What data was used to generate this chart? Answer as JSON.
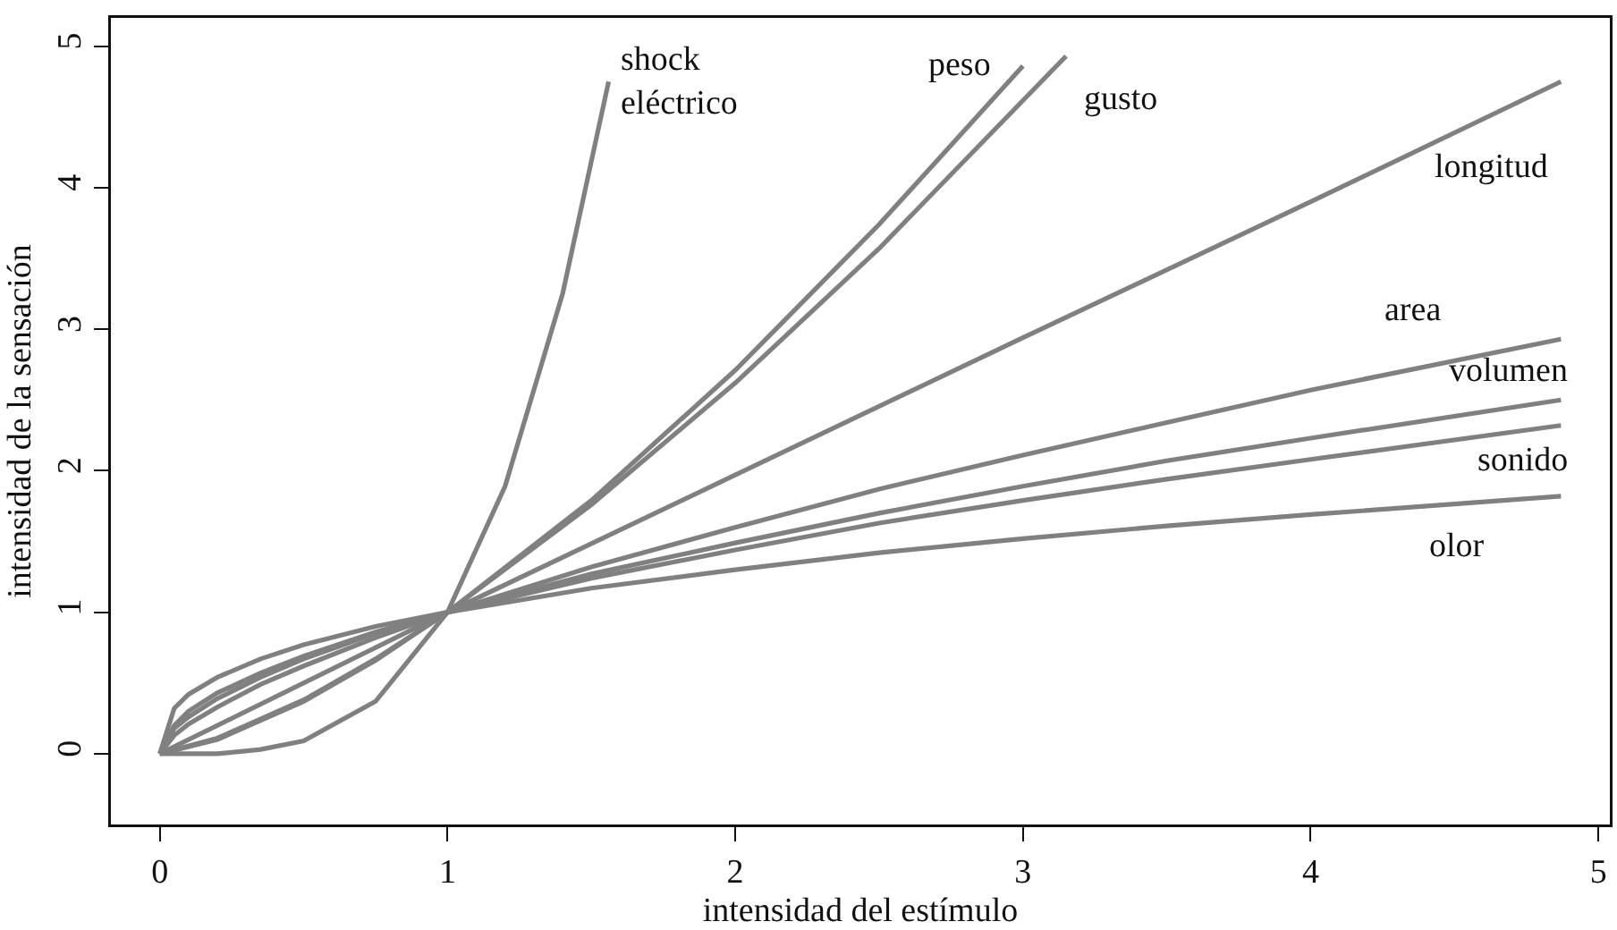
{
  "chart_data": {
    "type": "line",
    "xlabel": "intensidad del estímulo",
    "ylabel": "intensidad de la sensación",
    "xlim": [
      -0.17,
      5.04
    ],
    "ylim": [
      -0.5,
      5.2
    ],
    "xticks": [
      0,
      1,
      2,
      3,
      4,
      5
    ],
    "yticks": [
      0,
      1,
      2,
      3,
      4,
      5
    ],
    "grid": false,
    "legend": false,
    "marker": "none",
    "line_style": "solid",
    "series": [
      {
        "name": "shock\neléctrico",
        "color": "#808080",
        "x": [
          0,
          0.2,
          0.35,
          0.5,
          0.75,
          1,
          1.2,
          1.4,
          1.56
        ],
        "values": [
          0,
          0,
          0.03,
          0.09,
          0.37,
          1,
          1.89,
          3.25,
          4.75
        ]
      },
      {
        "name": "peso",
        "color": "#808080",
        "x": [
          0,
          0.2,
          0.5,
          0.75,
          1,
          1.5,
          2,
          2.5,
          3
        ],
        "values": [
          0,
          0.1,
          0.37,
          0.66,
          1,
          1.79,
          2.71,
          3.74,
          4.86
        ]
      },
      {
        "name": "gusto",
        "color": "#808080",
        "x": [
          0,
          0.2,
          0.5,
          0.75,
          1,
          1.5,
          2,
          2.5,
          3.15
        ],
        "values": [
          0,
          0.11,
          0.38,
          0.67,
          1,
          1.76,
          2.62,
          3.57,
          4.93
        ]
      },
      {
        "name": "longitud",
        "color": "#808080",
        "x": [
          0,
          1,
          2,
          3,
          4,
          4.87
        ],
        "values": [
          0,
          1,
          1.97,
          2.94,
          3.9,
          4.75
        ]
      },
      {
        "name": "area",
        "color": "#808080",
        "x": [
          0,
          0.05,
          0.1,
          0.2,
          0.35,
          0.5,
          0.75,
          1,
          1.5,
          2,
          2.5,
          3,
          3.5,
          4,
          4.87
        ],
        "values": [
          0,
          0.13,
          0.21,
          0.33,
          0.49,
          0.62,
          0.82,
          1,
          1.32,
          1.6,
          1.87,
          2.11,
          2.34,
          2.57,
          2.93
        ]
      },
      {
        "name": "volumen",
        "color": "#808080",
        "x": [
          0,
          0.05,
          0.1,
          0.2,
          0.35,
          0.5,
          0.75,
          1,
          1.5,
          2,
          2.5,
          3,
          3.5,
          4,
          4.87
        ],
        "values": [
          0,
          0.18,
          0.26,
          0.39,
          0.54,
          0.67,
          0.85,
          1,
          1.27,
          1.49,
          1.7,
          1.89,
          2.07,
          2.23,
          2.5
        ]
      },
      {
        "name": "sonido",
        "color": "#808080",
        "x": [
          0,
          0.05,
          0.1,
          0.2,
          0.35,
          0.5,
          0.75,
          1,
          1.5,
          2,
          2.5,
          3,
          3.5,
          4,
          4.87
        ],
        "values": [
          0,
          0.2,
          0.3,
          0.43,
          0.57,
          0.69,
          0.86,
          1,
          1.24,
          1.44,
          1.63,
          1.79,
          1.94,
          2.08,
          2.32
        ]
      },
      {
        "name": "olor",
        "color": "#808080",
        "x": [
          0,
          0.05,
          0.1,
          0.2,
          0.35,
          0.5,
          0.75,
          1,
          1.5,
          2,
          2.5,
          3,
          3.5,
          4,
          4.87
        ],
        "values": [
          0,
          0.32,
          0.42,
          0.54,
          0.67,
          0.77,
          0.9,
          1,
          1.17,
          1.3,
          1.42,
          1.52,
          1.61,
          1.69,
          1.82
        ]
      }
    ]
  }
}
